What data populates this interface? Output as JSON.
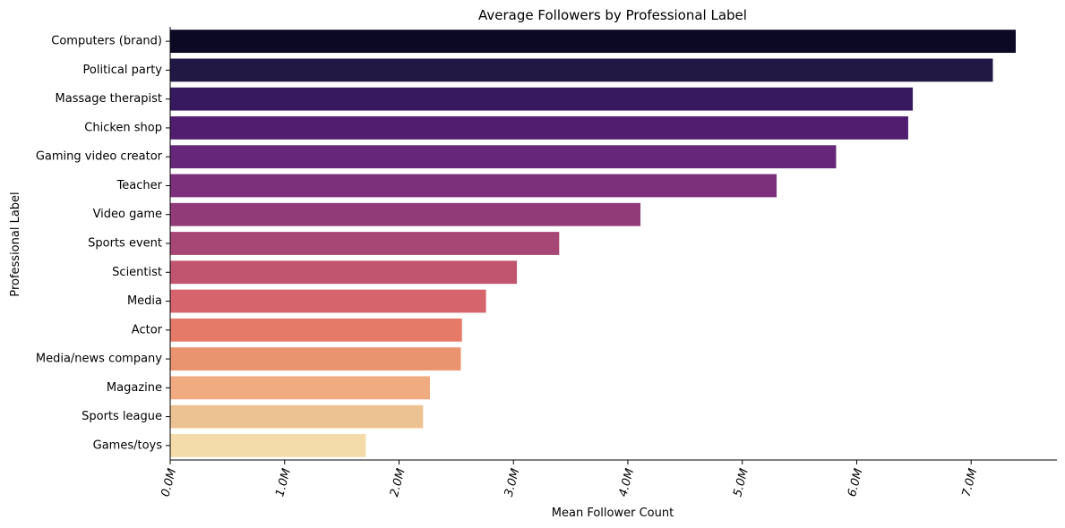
{
  "chart_data": {
    "type": "bar",
    "orientation": "horizontal",
    "title": "Average Followers by Professional Label",
    "xlabel": "Mean Follower Count",
    "ylabel": "Professional Label",
    "xlim": [
      0,
      7.75
    ],
    "x_unit": "M",
    "xticks": [
      0,
      1,
      2,
      3,
      4,
      5,
      6,
      7
    ],
    "xtick_labels": [
      "0.0M",
      "1.0M",
      "2.0M",
      "3.0M",
      "4.0M",
      "5.0M",
      "6.0M",
      "7.0M"
    ],
    "xtick_rotation": "75deg",
    "grid": false,
    "categories": [
      "Computers (brand)",
      "Political party",
      "Massage therapist",
      "Chicken shop",
      "Gaming video creator",
      "Teacher",
      "Video game",
      "Sports event",
      "Scientist",
      "Media",
      "Actor",
      "Media/news company",
      "Magazine",
      "Sports league",
      "Games/toys"
    ],
    "values": [
      7.39,
      7.19,
      6.49,
      6.45,
      5.82,
      5.3,
      4.11,
      3.4,
      3.03,
      2.76,
      2.55,
      2.54,
      2.27,
      2.21,
      1.71
    ],
    "colors": [
      "#0b0924",
      "#211843",
      "#36195f",
      "#501d6f",
      "#66277a",
      "#7c2f7b",
      "#913c79",
      "#a74775",
      "#c1546f",
      "#d5646d",
      "#e57a69",
      "#ea946f",
      "#f0ab80",
      "#edc293",
      "#f3dcaa"
    ]
  }
}
